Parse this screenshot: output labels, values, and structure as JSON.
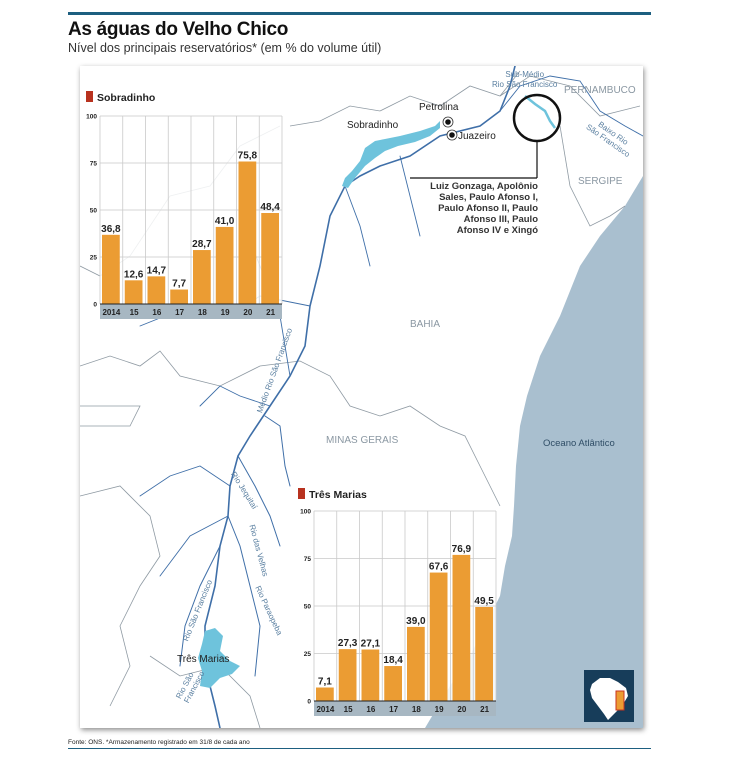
{
  "header": {
    "title": "As águas do Velho Chico",
    "subtitle": "Nível dos principais reservatórios* (em % do volume útil)"
  },
  "map": {
    "labels": {
      "sub_medio": [
        "Sub-Médio",
        "Rio São Francisco"
      ],
      "pernambuco": "PERNAMBUCO",
      "petrolina": "Petrolina",
      "juazeiro": "Juazeiro",
      "sobradinho": "Sobradinho",
      "baixo": [
        "Baixo Rio",
        "São Francisco"
      ],
      "sergipe": "SERGIPE",
      "bahia": "BAHIA",
      "minas_gerais": "MINAS GERAIS",
      "oceano": "Oceano Atlântico",
      "medio": "Médio Rio São Francisco",
      "rio_jequitai": "Rio Jequitaí",
      "rio_das_velhas": "Rio das Velhas",
      "rio_paraopeba": "Rio Paraopeba",
      "rio_sf_upper": "Rio São Francisco",
      "rio_sf_lower": [
        "Rio São",
        "Francisco"
      ],
      "tres_marias": "Três Marias",
      "plants": [
        "Luiz Gonzaga, Apolônio",
        "Sales, Paulo Afonso I,",
        "Paulo Afonso II, Paulo",
        "Afonso III, Paulo",
        "Afonso IV e Xingó"
      ]
    },
    "colors": {
      "ocean": "#a9bfcf",
      "reservoir": "#6ec3dc",
      "river": "#3f6fa8",
      "border": "#8f9aa3"
    }
  },
  "chart_data": [
    {
      "type": "bar",
      "title": "Sobradinho",
      "categories": [
        "2014",
        "15",
        "16",
        "17",
        "18",
        "19",
        "20",
        "21"
      ],
      "values": [
        36.8,
        12.6,
        14.7,
        7.7,
        28.7,
        41.0,
        75.8,
        48.4
      ],
      "value_labels": [
        "36,8",
        "12,6",
        "14,7",
        "7,7",
        "28,7",
        "41,0",
        "75,8",
        "48,4"
      ],
      "yticks": [
        "0",
        "25",
        "50",
        "75",
        "100"
      ],
      "ylim": [
        0,
        100
      ],
      "grid": true,
      "bar_color": "#eb9c33",
      "legend_color": "#b8321f"
    },
    {
      "type": "bar",
      "title": "Três Marias",
      "categories": [
        "2014",
        "15",
        "16",
        "17",
        "18",
        "19",
        "20",
        "21"
      ],
      "values": [
        7.1,
        27.3,
        27.1,
        18.4,
        39.0,
        67.6,
        76.9,
        49.5
      ],
      "value_labels": [
        "7,1",
        "27,3",
        "27,1",
        "18,4",
        "39,0",
        "67,6",
        "76,9",
        "49,5"
      ],
      "yticks": [
        "0",
        "25",
        "50",
        "75",
        "100"
      ],
      "ylim": [
        0,
        100
      ],
      "grid": true,
      "bar_color": "#eb9c33",
      "legend_color": "#b8321f"
    }
  ],
  "footer": {
    "source": "Fonte: ONS. *Armazenamento registrado em 31/8 de cada ano"
  }
}
